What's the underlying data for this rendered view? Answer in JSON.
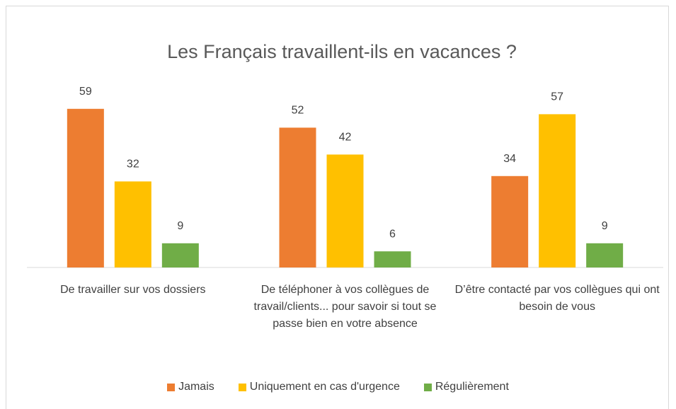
{
  "chart_data": {
    "type": "bar",
    "title": "Les Français travaillent-ils en vacances ?",
    "categories": [
      "De travailler sur vos dossiers",
      "De téléphoner à vos collègues de travail/clients... pour savoir si tout se passe bien en votre absence",
      "D’être contacté par vos collègues qui ont besoin de vous"
    ],
    "series": [
      {
        "name": "Jamais",
        "color": "#ED7D31",
        "values": [
          59,
          52,
          34
        ]
      },
      {
        "name": "Uniquement en cas d'urgence",
        "color": "#FFC000",
        "values": [
          32,
          42,
          57
        ]
      },
      {
        "name": "Régulièrement",
        "color": "#70AD47",
        "values": [
          9,
          6,
          9
        ]
      }
    ],
    "ylim": [
      0,
      70
    ],
    "legend": "bottom"
  }
}
